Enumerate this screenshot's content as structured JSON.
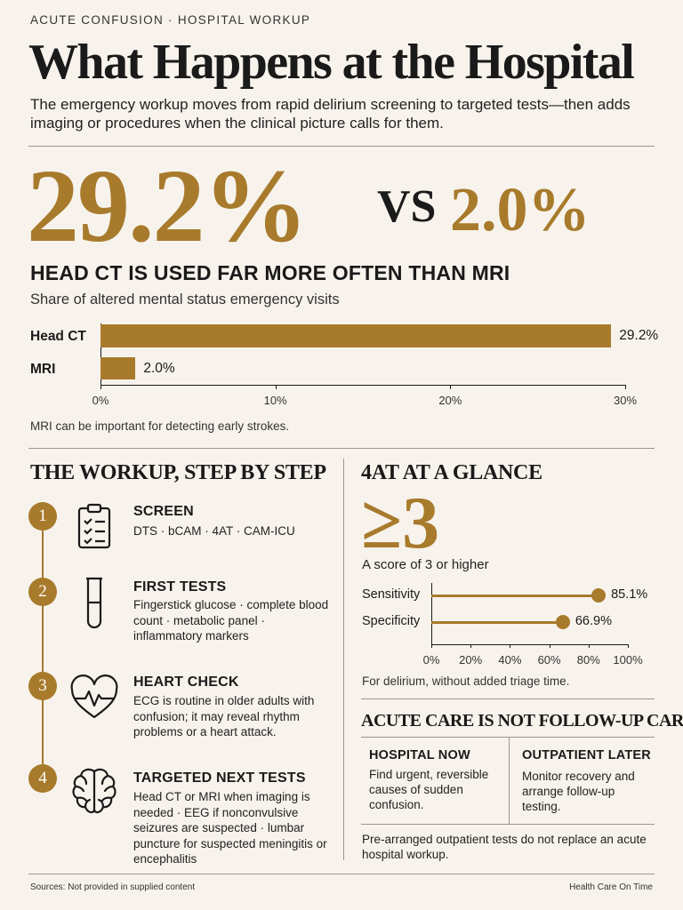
{
  "header": {
    "kicker": "ACUTE CONFUSION · HOSPITAL WORKUP",
    "title": "What Happens at the Hospital",
    "subtitle": "The emergency workup moves from rapid delirium screening to targeted tests—then adds imaging or procedures when the clinical picture calls for them."
  },
  "comparison": {
    "stat_a": "29.2%",
    "vs": "VS",
    "stat_b": "2.0%",
    "headline": "HEAD CT IS USED FAR MORE OFTEN THAN MRI",
    "subtitle": "Share of altered mental status emergency visits",
    "note": "MRI can be important for detecting early strokes."
  },
  "chart_data": [
    {
      "type": "bar",
      "orientation": "horizontal",
      "categories": [
        "Head CT",
        "MRI"
      ],
      "values": [
        29.2,
        2.0
      ],
      "value_labels": [
        "29.2%",
        "2.0%"
      ],
      "xlim": [
        0,
        30
      ],
      "xticks": [
        "0%",
        "10%",
        "20%",
        "30%"
      ],
      "colors": [
        "#a87a2c"
      ]
    },
    {
      "type": "lollipop",
      "orientation": "horizontal",
      "categories": [
        "Sensitivity",
        "Specificity"
      ],
      "values": [
        85.1,
        66.9
      ],
      "value_labels": [
        "85.1%",
        "66.9%"
      ],
      "xlim": [
        0,
        100
      ],
      "xticks": [
        "0%",
        "20%",
        "40%",
        "60%",
        "80%",
        "100%"
      ],
      "colors": [
        "#a87a2c"
      ]
    }
  ],
  "workup": {
    "title": "THE WORKUP, STEP BY STEP",
    "steps": [
      {
        "num": "1",
        "icon": "clipboard-checklist-icon",
        "title": "SCREEN",
        "body": "DTS · bCAM · 4AT · CAM-ICU"
      },
      {
        "num": "2",
        "icon": "test-tube-icon",
        "title": "FIRST TESTS",
        "body": "Fingerstick glucose · complete blood count · metabolic panel · inflammatory markers"
      },
      {
        "num": "3",
        "icon": "heart-ecg-icon",
        "title": "HEART CHECK",
        "body": "ECG is routine in older adults with confusion; it may reveal rhythm problems or a heart attack."
      },
      {
        "num": "4",
        "icon": "brain-icon",
        "title": "TARGETED NEXT TESTS",
        "body": "Head CT or MRI when imaging is needed · EEG if nonconvulsive seizures are suspected · lumbar puncture for suspected meningitis or encephalitis"
      }
    ]
  },
  "glance": {
    "title": "4AT AT A GLANCE",
    "big": "≥3",
    "score_text": "A score of 3 or higher",
    "note": "For delirium, without added triage time."
  },
  "care": {
    "title": "ACUTE CARE IS NOT FOLLOW-UP CARE",
    "left_head": "HOSPITAL NOW",
    "left_body": "Find urgent, reversible causes of sudden confusion.",
    "right_head": "OUTPATIENT LATER",
    "right_body": "Monitor recovery and arrange follow-up testing.",
    "note": "Pre-arranged outpatient tests do not replace an acute hospital workup."
  },
  "footer": {
    "sources": "Sources: Not provided in supplied content",
    "brand": "Health Care On Time"
  },
  "colors": {
    "accent": "#a87a2c",
    "background": "#f7f3ec",
    "text": "#1a1a1a",
    "rule": "#9a948b"
  }
}
